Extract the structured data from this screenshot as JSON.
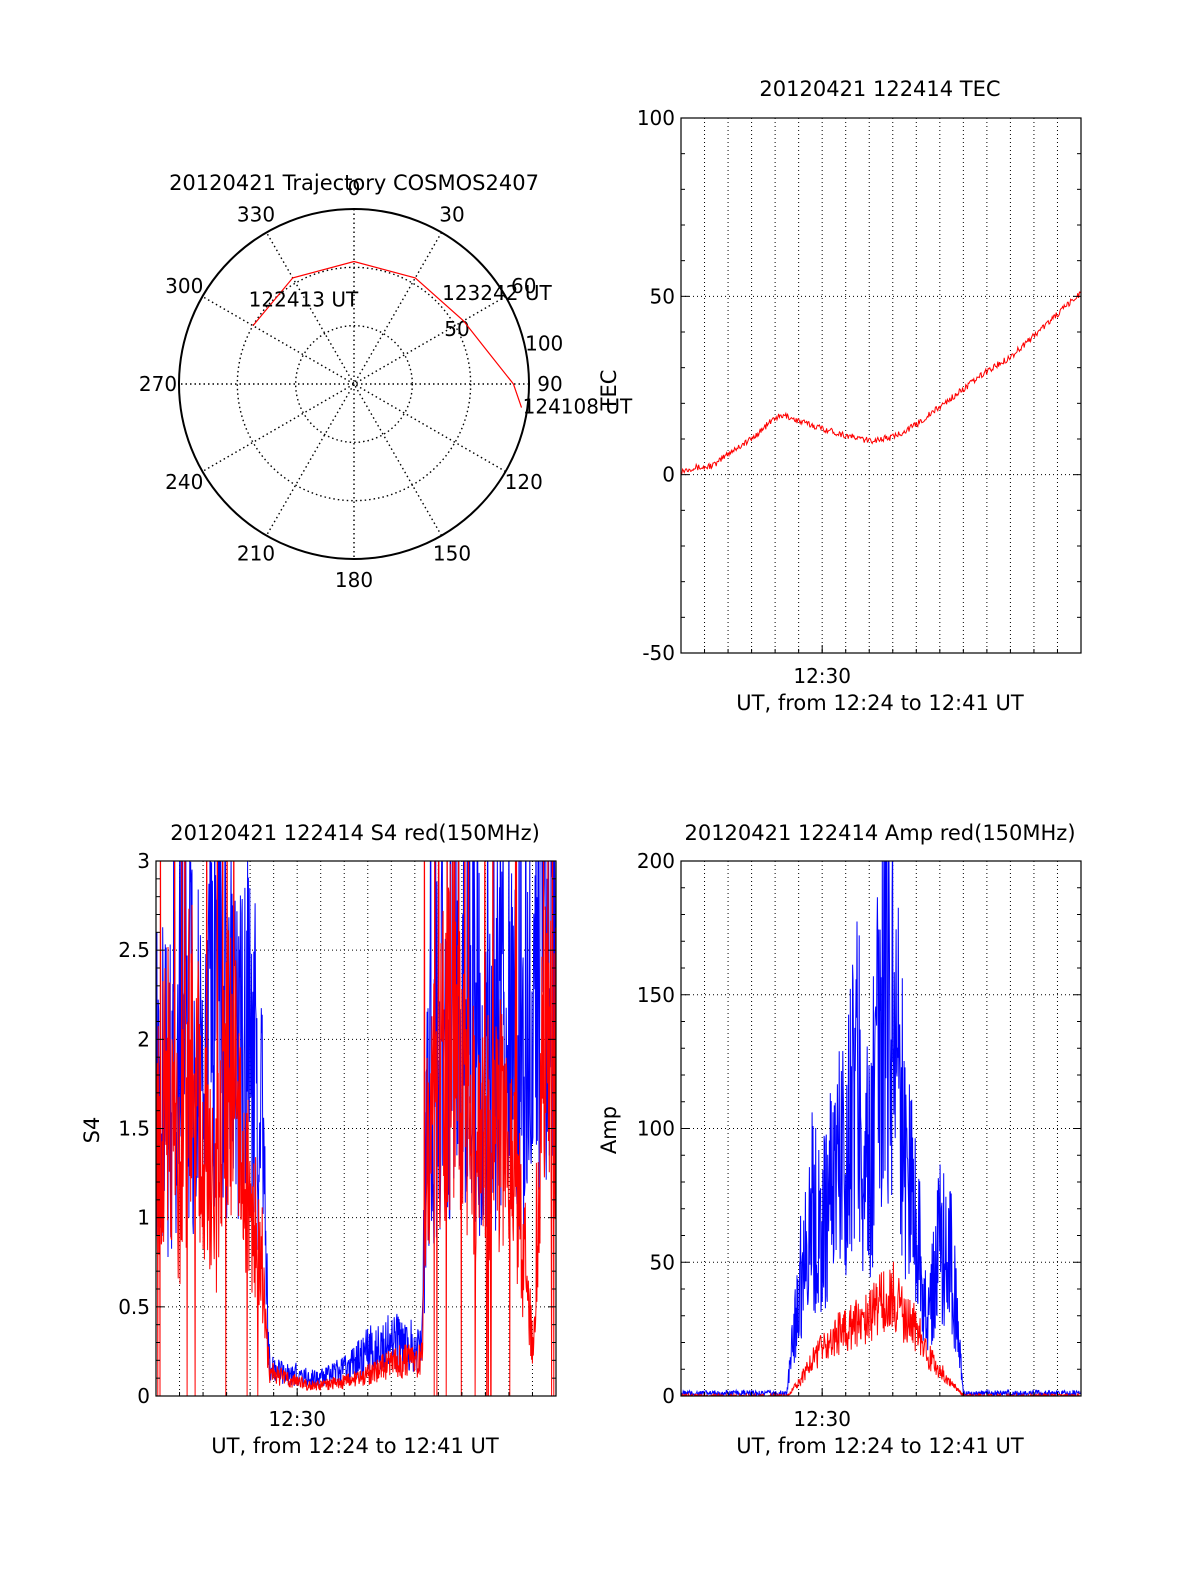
{
  "colors": {
    "red": "#ff0000",
    "blue": "#0000ff",
    "axis": "#000000",
    "grid": "#000000"
  },
  "chart_data": [
    {
      "type": "polar",
      "title": "20120421 Trajectory COSMOS2407",
      "angle_ticks": [
        "0",
        "30",
        "60",
        "90",
        "120",
        "150",
        "180",
        "210",
        "240",
        "270",
        "300",
        "330"
      ],
      "radius_ticks": [
        "50",
        "100"
      ],
      "ring_values": [
        0,
        30,
        60,
        90
      ],
      "grid": true,
      "series": [
        {
          "color": "red",
          "points": [
            [
              -60,
              60
            ],
            [
              -30,
              63
            ],
            [
              0,
              63
            ],
            [
              30,
              63
            ],
            [
              60,
              65
            ],
            [
              75,
              70
            ],
            [
              90,
              82
            ],
            [
              98,
              87
            ]
          ]
        }
      ],
      "annotations": [
        {
          "text": "122413 UT",
          "azimuth": -49,
          "zenith": 67
        },
        {
          "text": "123242 UT",
          "azimuth": 46,
          "zenith": 68
        },
        {
          "text": "124108 UT",
          "azimuth": 97,
          "zenith": 91
        }
      ]
    },
    {
      "type": "line",
      "title": "20120421 122414 TEC",
      "xlabel": "UT, from 12:24 to 12:41 UT",
      "ylabel": "TEC",
      "xlim": [
        0,
        17
      ],
      "ylim": [
        -50,
        100
      ],
      "yticks": [
        "-50",
        "0",
        "50",
        "100"
      ],
      "xticks": [
        {
          "value": 6,
          "label": "12:30"
        }
      ],
      "grid": true,
      "series": [
        {
          "color": "red",
          "x": [
            0,
            0.5,
            1,
            1.5,
            2,
            2.5,
            3,
            3.5,
            4,
            4.5,
            5,
            6,
            7,
            8,
            9,
            10,
            11,
            12,
            13,
            14,
            15,
            16,
            17
          ],
          "values": [
            1,
            2,
            2,
            3,
            6,
            8,
            10,
            13,
            16,
            16.5,
            15,
            13,
            11,
            9.5,
            10.5,
            14,
            19,
            24,
            29,
            33,
            39,
            45,
            51
          ]
        }
      ]
    },
    {
      "type": "line",
      "title": "20120421 122414 S4 red(150MHz)",
      "xlabel": "UT, from 12:24 to 12:41 UT",
      "ylabel": "S4",
      "xlim": [
        0,
        17
      ],
      "ylim": [
        0,
        3
      ],
      "yticks": [
        "0",
        "0.5",
        "1",
        "1.5",
        "2",
        "2.5",
        "3"
      ],
      "xticks": [
        {
          "value": 6,
          "label": "12:30"
        }
      ],
      "grid": true,
      "series": [
        {
          "color": "blue",
          "x": [
            0,
            0.5,
            1,
            1.5,
            2,
            2.5,
            3,
            3.5,
            4,
            4.5,
            4.8,
            5,
            5.5,
            6,
            6.5,
            7,
            7.5,
            8,
            8.5,
            9,
            9.5,
            10,
            10.5,
            11,
            11.3,
            11.5,
            12,
            12.5,
            13,
            13.5,
            14,
            14.5,
            15,
            15.5,
            16,
            16.5,
            17
          ],
          "values": [
            2.0,
            1.6,
            2.2,
            2.0,
            1.8,
            2.3,
            2.0,
            1.9,
            2.1,
            1.5,
            0.2,
            0.15,
            0.12,
            0.12,
            0.1,
            0.1,
            0.12,
            0.15,
            0.2,
            0.25,
            0.28,
            0.3,
            0.3,
            0.28,
            0.25,
            1.5,
            2.0,
            2.2,
            2.4,
            2.1,
            1.8,
            2.0,
            2.3,
            1.6,
            2.2,
            2.6,
            2.2
          ]
        },
        {
          "color": "red",
          "x": [
            0,
            0.5,
            1,
            1.5,
            2,
            2.5,
            3,
            3.5,
            4,
            4.5,
            4.8,
            5,
            5.5,
            6,
            6.5,
            7,
            7.5,
            8,
            8.5,
            9,
            9.5,
            10,
            10.5,
            11,
            11.3,
            11.5,
            12,
            12.5,
            13,
            13.5,
            14,
            14.5,
            15,
            15.5,
            16,
            16.5,
            17
          ],
          "values": [
            1.5,
            1.8,
            1.2,
            2.0,
            1.4,
            1.0,
            1.8,
            1.6,
            1.0,
            0.8,
            0.15,
            0.12,
            0.1,
            0.08,
            0.06,
            0.06,
            0.07,
            0.08,
            0.1,
            0.12,
            0.15,
            0.18,
            0.2,
            0.2,
            0.2,
            1.3,
            1.8,
            2.0,
            1.7,
            1.5,
            1.4,
            1.6,
            1.3,
            1.0,
            0.3,
            2.0,
            1.8
          ]
        }
      ]
    },
    {
      "type": "line",
      "title": "20120421 122414 Amp red(150MHz)",
      "xlabel": "UT, from 12:24 to 12:41 UT",
      "ylabel": "Amp",
      "xlim": [
        0,
        17
      ],
      "ylim": [
        0,
        200
      ],
      "yticks": [
        "0",
        "50",
        "100",
        "150",
        "200"
      ],
      "xticks": [
        {
          "value": 6,
          "label": "12:30"
        }
      ],
      "grid": true,
      "series": [
        {
          "color": "blue",
          "x": [
            0,
            1,
            2,
            3,
            4,
            4.5,
            5,
            5.5,
            6,
            6.5,
            7,
            7.5,
            8,
            8.5,
            9,
            9.5,
            10,
            10.5,
            11,
            11.5,
            12,
            13,
            14,
            15,
            16,
            17
          ],
          "values": [
            1,
            1,
            1,
            1,
            1,
            1,
            40,
            70,
            60,
            85,
            95,
            120,
            80,
            140,
            160,
            90,
            70,
            25,
            60,
            50,
            1,
            1,
            1,
            1,
            1,
            1
          ]
        },
        {
          "color": "red",
          "x": [
            0,
            1,
            2,
            3,
            4,
            4.5,
            5,
            5.5,
            6,
            6.5,
            7,
            7.5,
            8,
            8.5,
            9,
            9.5,
            10,
            10.5,
            11,
            11.5,
            12,
            13,
            14,
            15,
            16,
            17
          ],
          "values": [
            0,
            0,
            0,
            0,
            0,
            0,
            5,
            12,
            18,
            22,
            25,
            28,
            30,
            35,
            38,
            30,
            25,
            15,
            10,
            5,
            0,
            0,
            0,
            0,
            0,
            0
          ]
        }
      ]
    }
  ]
}
